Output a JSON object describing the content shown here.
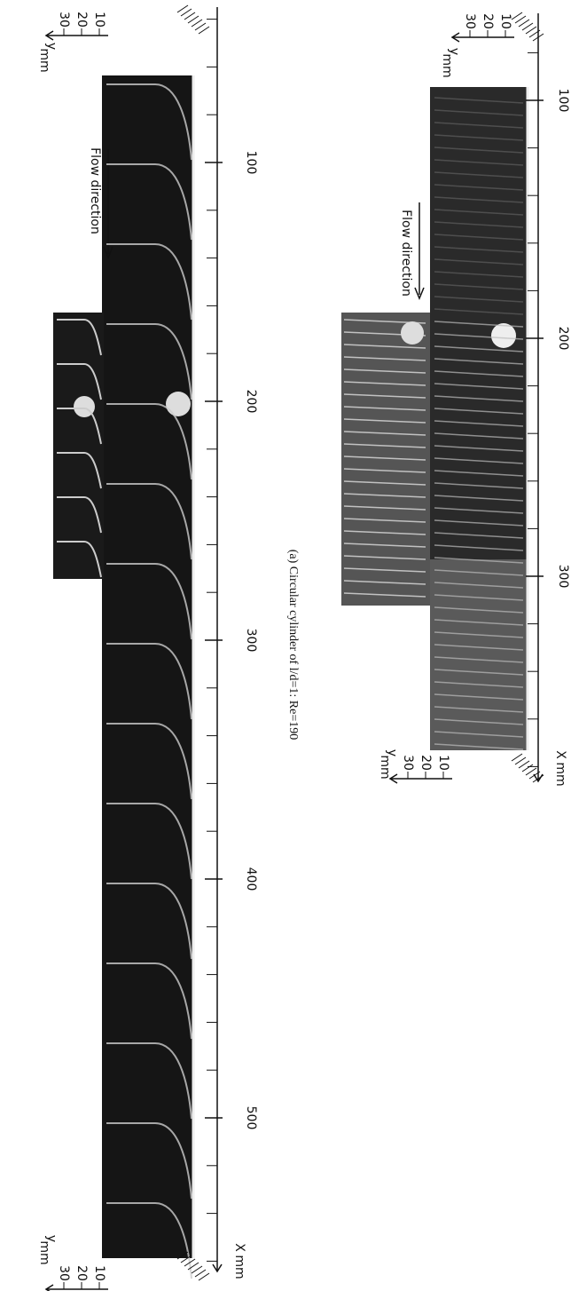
{
  "figure_a": {
    "caption": "(a) Circular cylinder of l/d=1: Re=190",
    "flow_direction": "Flow direction",
    "x_axis": {
      "label": "X",
      "unit": "mm",
      "ticks": [
        100,
        200,
        300,
        400,
        500
      ]
    },
    "y_axes": [
      {
        "label": "y",
        "unit": "mm",
        "ticks": [
          30,
          20,
          10
        ]
      },
      {
        "label": "y",
        "unit": "mm",
        "ticks": [
          30,
          20,
          10
        ]
      }
    ]
  },
  "figure_b": {
    "flow_direction": "Flow direction",
    "x_axis": {
      "label": "X",
      "unit": "mm",
      "ticks": [
        100,
        200,
        300
      ]
    },
    "y_axes": [
      {
        "label": "y",
        "unit": "mm",
        "ticks": [
          30,
          20,
          10
        ]
      },
      {
        "label": "y",
        "unit": "mm",
        "ticks": [
          30,
          20,
          10
        ]
      }
    ]
  }
}
